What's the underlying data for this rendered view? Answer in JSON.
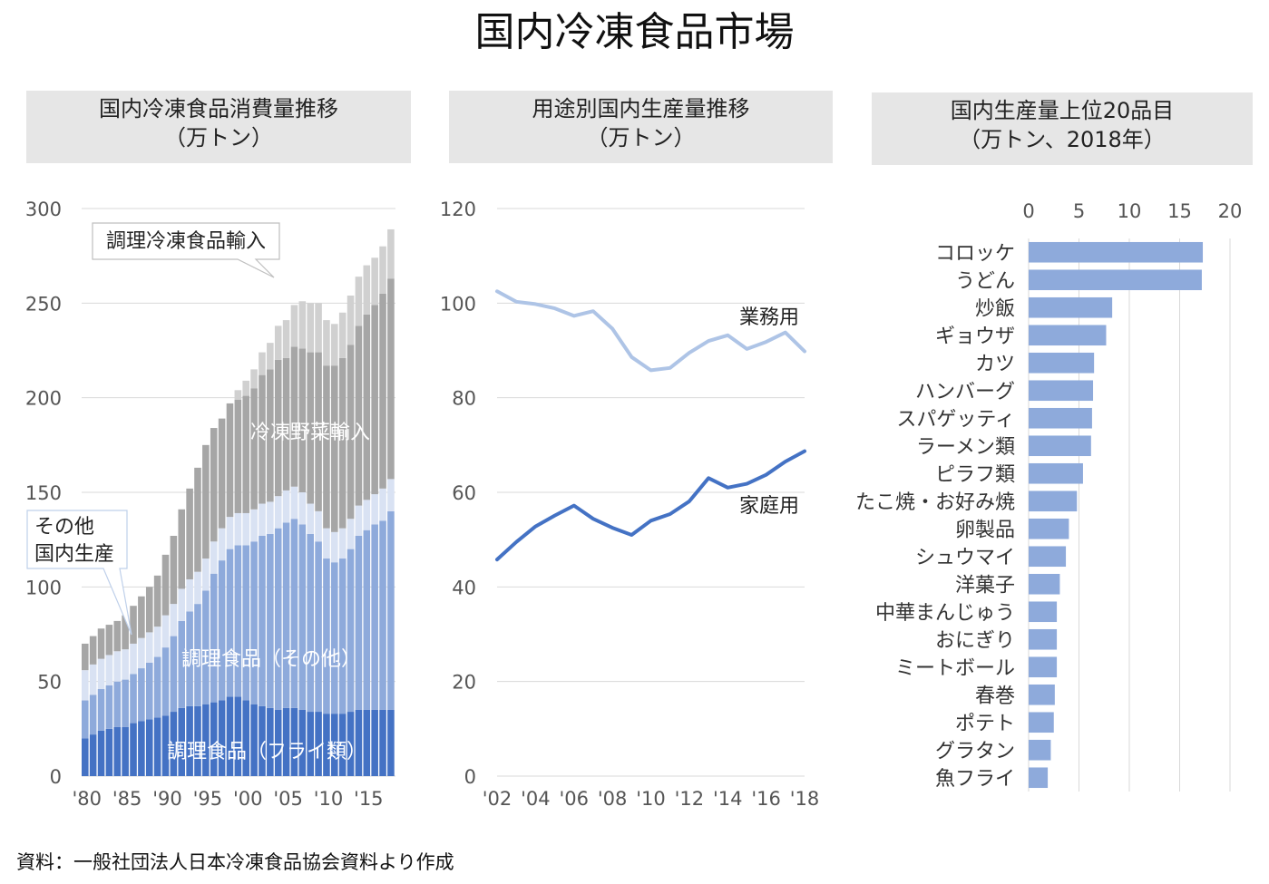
{
  "title": "国内冷凍食品市場",
  "source": "資料：一般社団法人日本冷凍食品協会資料より作成",
  "colors": {
    "fry": "#4472c4",
    "other_cooked": "#8eaadb",
    "other_domestic": "#d9e2f3",
    "veg_import": "#a6a6a6",
    "cooked_import": "#d0d0d0",
    "business": "#aec4e6",
    "household": "#4472c4",
    "ranking_bar": "#8eaadb",
    "grid": "#d9d9d9",
    "header_bg": "#e6e6e6"
  },
  "chart_data": [
    {
      "type": "bar",
      "stacked": true,
      "title_lines": [
        "国内冷凍食品消費量推移",
        "（万トン）"
      ],
      "ylim": [
        0,
        300
      ],
      "yticks": [
        0,
        50,
        100,
        150,
        200,
        250,
        300
      ],
      "grid": true,
      "x": [
        1980,
        1981,
        1982,
        1983,
        1984,
        1985,
        1986,
        1987,
        1988,
        1989,
        1990,
        1991,
        1992,
        1993,
        1994,
        1995,
        1996,
        1997,
        1998,
        1999,
        2000,
        2001,
        2002,
        2003,
        2004,
        2005,
        2006,
        2007,
        2008,
        2009,
        2010,
        2011,
        2012,
        2013,
        2014,
        2015,
        2016,
        2017,
        2018
      ],
      "xtick_labels": [
        "'80",
        "'85",
        "'90",
        "'95",
        "'00",
        "'05",
        "'10",
        "'15"
      ],
      "xtick_years": [
        1980,
        1985,
        1990,
        1995,
        2000,
        2005,
        2010,
        2015
      ],
      "series": [
        {
          "key": "fry",
          "name": "調理食品（フライ類）",
          "values": [
            20,
            22,
            24,
            25,
            26,
            26,
            28,
            29,
            30,
            31,
            32,
            34,
            36,
            37,
            37,
            38,
            39,
            40,
            42,
            42,
            40,
            38,
            37,
            36,
            35,
            36,
            36,
            35,
            34,
            34,
            33,
            33,
            33,
            34,
            35,
            35,
            35,
            35,
            35
          ]
        },
        {
          "key": "other_cooked",
          "name": "調理食品（その他）",
          "values": [
            20,
            21,
            22,
            23,
            24,
            25,
            26,
            28,
            30,
            32,
            36,
            40,
            46,
            50,
            54,
            60,
            68,
            74,
            78,
            80,
            82,
            86,
            90,
            92,
            96,
            98,
            100,
            98,
            94,
            90,
            82,
            80,
            82,
            86,
            92,
            95,
            98,
            100,
            105
          ]
        },
        {
          "key": "other_domestic",
          "name": "その他国内生産",
          "values": [
            16,
            16,
            16,
            16,
            16,
            16,
            16,
            16,
            16,
            16,
            17,
            17,
            17,
            17,
            17,
            17,
            17,
            17,
            17,
            17,
            17,
            17,
            17,
            17,
            17,
            17,
            17,
            17,
            16,
            16,
            16,
            16,
            16,
            16,
            16,
            16,
            16,
            17,
            17
          ]
        },
        {
          "key": "veg_import",
          "name": "冷凍野菜輸入",
          "values": [
            14,
            15,
            16,
            16,
            16,
            18,
            20,
            22,
            24,
            27,
            32,
            36,
            42,
            48,
            55,
            60,
            60,
            58,
            60,
            60,
            62,
            64,
            68,
            70,
            72,
            70,
            74,
            76,
            80,
            84,
            86,
            88,
            90,
            92,
            95,
            98,
            100,
            103,
            106
          ]
        },
        {
          "key": "cooked_import",
          "name": "調理冷凍食品輸入",
          "values": [
            0,
            0,
            0,
            0,
            0,
            0,
            0,
            0,
            0,
            0,
            0,
            0,
            0,
            0,
            0,
            0,
            0,
            0,
            0,
            5,
            8,
            10,
            12,
            14,
            18,
            20,
            22,
            25,
            26,
            26,
            24,
            22,
            24,
            26,
            26,
            26,
            25,
            25,
            26
          ]
        }
      ],
      "annotations": [
        {
          "key": "cooked_import",
          "text": "調理冷凍食品輸入",
          "style": "callout"
        },
        {
          "key": "veg_import",
          "text": "冷凍野菜輸入",
          "style": "inside"
        },
        {
          "key": "other_domestic",
          "text_lines": [
            "その他",
            "国内生産"
          ],
          "style": "callout"
        },
        {
          "key": "other_cooked",
          "text": "調理食品（その他）",
          "style": "inside"
        },
        {
          "key": "fry",
          "text": "調理食品（フライ類）",
          "style": "inside"
        }
      ]
    },
    {
      "type": "line",
      "title_lines": [
        "用途別国内生産量推移",
        "（万トン）"
      ],
      "ylim": [
        0,
        120
      ],
      "yticks": [
        0,
        20,
        40,
        60,
        80,
        100,
        120
      ],
      "grid": true,
      "x": [
        2002,
        2003,
        2004,
        2005,
        2006,
        2007,
        2008,
        2009,
        2010,
        2011,
        2012,
        2013,
        2014,
        2015,
        2016,
        2017,
        2018
      ],
      "xtick_labels": [
        "'02",
        "'04",
        "'06",
        "'08",
        "'10",
        "'12",
        "'14",
        "'16",
        "'18"
      ],
      "xtick_years": [
        2002,
        2004,
        2006,
        2008,
        2010,
        2012,
        2014,
        2016,
        2018
      ],
      "series": [
        {
          "key": "business",
          "name": "業務用",
          "values": [
            102.5,
            100.3,
            99.8,
            98.9,
            97.3,
            98.3,
            94.6,
            88.6,
            85.8,
            86.3,
            89.5,
            92.0,
            93.2,
            90.3,
            91.8,
            93.8,
            89.8
          ]
        },
        {
          "key": "household",
          "name": "家庭用",
          "values": [
            45.8,
            49.5,
            52.8,
            55.1,
            57.2,
            54.4,
            52.5,
            51.0,
            54.0,
            55.4,
            58.1,
            63.0,
            61.0,
            61.8,
            63.7,
            66.5,
            68.7
          ]
        }
      ]
    },
    {
      "type": "bar",
      "orientation": "horizontal",
      "title_lines": [
        "国内生産量上位20品目",
        "（万トン、2018年）"
      ],
      "xlim": [
        0,
        20
      ],
      "xticks": [
        0,
        5,
        10,
        15,
        20
      ],
      "grid": true,
      "categories": [
        "コロッケ",
        "うどん",
        "炒飯",
        "ギョウザ",
        "カツ",
        "ハンバーグ",
        "スパゲッティ",
        "ラーメン類",
        "ピラフ類",
        "たこ焼・お好み焼",
        "卵製品",
        "シュウマイ",
        "洋菓子",
        "中華まんじゅう",
        "おにぎり",
        "ミートボール",
        "春巻",
        "ポテト",
        "グラタン",
        "魚フライ"
      ],
      "values": [
        17.3,
        17.2,
        8.3,
        7.7,
        6.5,
        6.4,
        6.3,
        6.2,
        5.4,
        4.8,
        4.0,
        3.7,
        3.1,
        2.8,
        2.8,
        2.8,
        2.6,
        2.5,
        2.2,
        1.9
      ]
    }
  ]
}
